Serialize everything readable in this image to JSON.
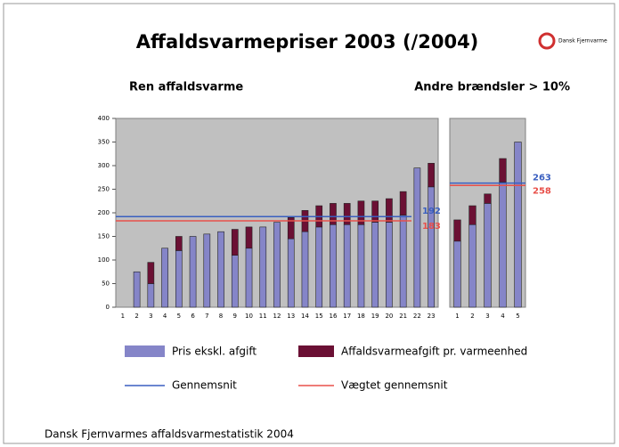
{
  "title": "Affaldsvarmepriser 2003 (/2004)",
  "logo": "Dansk Fjernvarme",
  "footer": "Dansk Fjernvarmes affaldsvarmestatistik 2004",
  "chart_data": [
    {
      "type": "bar",
      "stacked": true,
      "subtitle": "Ren affaldsvarme",
      "categories": [
        "1",
        "2",
        "3",
        "4",
        "5",
        "6",
        "7",
        "8",
        "9",
        "10",
        "11",
        "12",
        "13",
        "14",
        "15",
        "16",
        "17",
        "18",
        "19",
        "20",
        "21",
        "22",
        "23"
      ],
      "series": [
        {
          "name": "Pris ekskl. afgift",
          "color": "#8585c8",
          "values": [
            0,
            75,
            50,
            125,
            120,
            150,
            155,
            160,
            110,
            125,
            170,
            180,
            145,
            160,
            170,
            175,
            175,
            175,
            180,
            180,
            195,
            295,
            255
          ]
        },
        {
          "name": "Affaldsvarmeafgift pr. varmeenhed",
          "color": "#6b1034",
          "values": [
            0,
            0,
            45,
            0,
            30,
            0,
            0,
            0,
            55,
            45,
            0,
            0,
            45,
            45,
            45,
            45,
            45,
            50,
            45,
            50,
            50,
            0,
            50
          ]
        }
      ],
      "reference_lines": [
        {
          "name": "Gennemsnit",
          "value": 192,
          "color": "#3a5fc0"
        },
        {
          "name": "Vægtet gennemsnit",
          "value": 183,
          "color": "#e8504a"
        }
      ],
      "ylim": [
        0,
        400
      ],
      "yticks": [
        0,
        50,
        100,
        150,
        200,
        250,
        300,
        350,
        400
      ]
    },
    {
      "type": "bar",
      "stacked": true,
      "subtitle": "Andre brændsler > 10%",
      "categories": [
        "1",
        "2",
        "3",
        "4",
        "5"
      ],
      "series": [
        {
          "color": "#8585c8",
          "values": [
            140,
            175,
            220,
            265,
            350
          ]
        },
        {
          "color": "#6b1034",
          "values": [
            45,
            40,
            20,
            50,
            0
          ]
        }
      ],
      "reference_lines": [
        {
          "value": 263,
          "color": "#3a5fc0"
        },
        {
          "value": 258,
          "color": "#e8504a"
        }
      ],
      "ylim": [
        0,
        400
      ]
    }
  ]
}
